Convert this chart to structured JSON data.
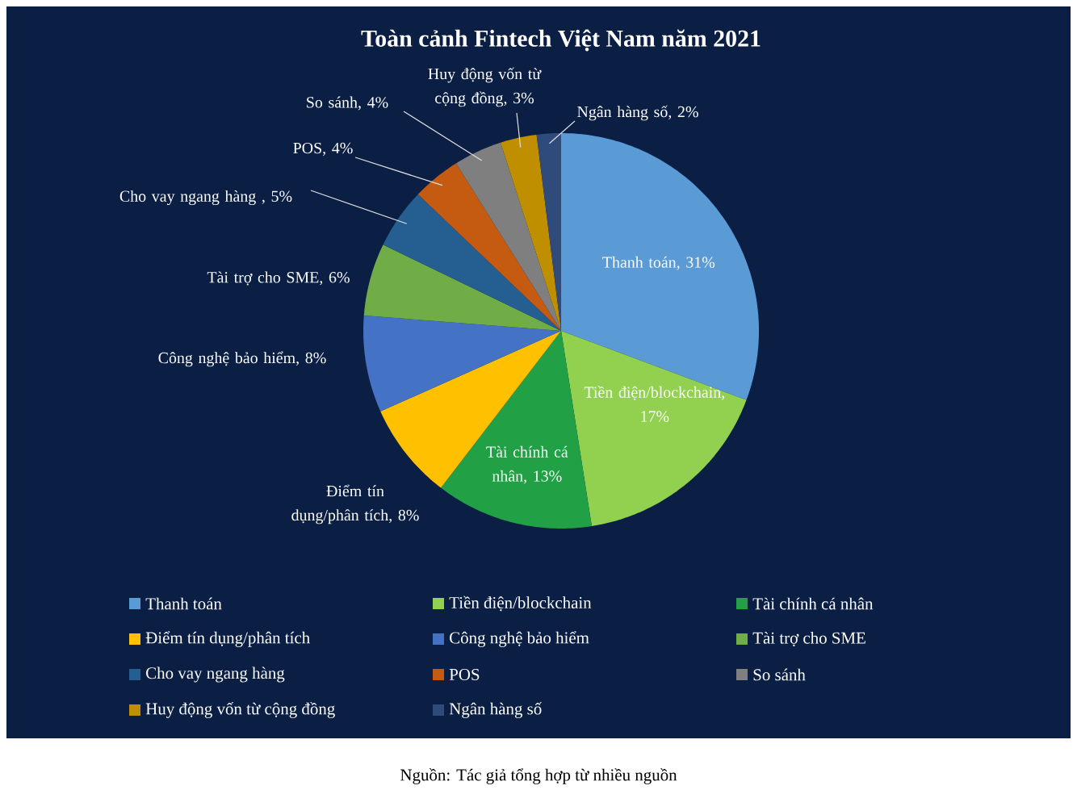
{
  "chart_data": {
    "type": "pie",
    "title": "Toàn cảnh Fintech Việt Nam năm 2021",
    "categories": [
      "Thanh toán",
      "Tiền điện/blockchain",
      "Tài chính cá nhân",
      "Điểm tín dụng/phân tích",
      "Công nghệ bảo hiểm",
      "Tài trợ cho SME",
      "Cho vay ngang hàng",
      "POS",
      "So sánh",
      "Huy động vốn từ cộng đồng",
      "Ngân hàng số"
    ],
    "values": [
      31,
      17,
      13,
      8,
      8,
      6,
      5,
      4,
      4,
      3,
      2
    ],
    "value_labels": [
      "Thanh toán, 31%",
      "Tiền điện/blockchain, 17%",
      "Tài chính cá nhân, 13%",
      "Điểm tín dụng/phân tích, 8%",
      "Công nghệ bảo hiểm, 8%",
      "Tài trợ cho SME, 6%",
      "Cho vay ngang hàng , 5%",
      "POS, 4%",
      "So sánh, 4%",
      "Huy động vốn từ cộng đồng, 3%",
      "Ngân hàng số, 2%"
    ],
    "colors": [
      "#5b9bd5",
      "#92d050",
      "#21a045",
      "#ffc000",
      "#4472c4",
      "#70ad47",
      "#255e91",
      "#c55a11",
      "#7f7f7f",
      "#bf8f00",
      "#2f4b7c"
    ],
    "legend": "bottom",
    "annotations": [
      "Nguồn: Tác giả tổng hợp từ nhiều nguồn"
    ]
  }
}
